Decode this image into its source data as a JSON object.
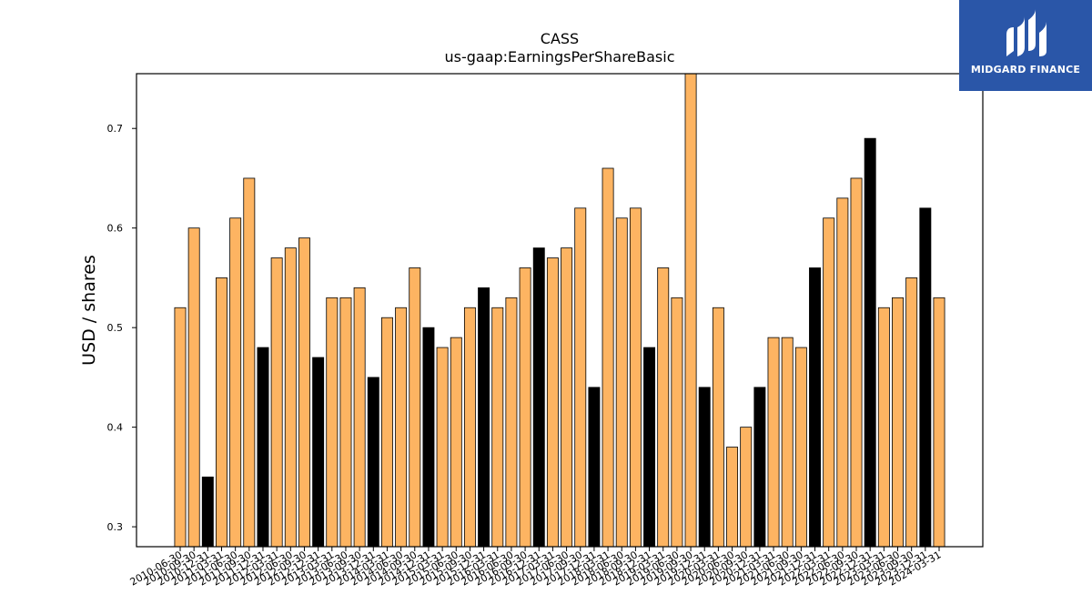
{
  "brand": {
    "name": "MIDGARD FINANCE",
    "bg_color": "#2a56a8"
  },
  "chart_data": {
    "type": "bar",
    "title": "CASS",
    "subtitle": "us-gaap:EarningsPerShareBasic",
    "ylabel": "USD / shares",
    "xlabel": "",
    "ylim": [
      0.28,
      0.755
    ],
    "yticks": [
      0.3,
      0.4,
      0.5,
      0.6,
      0.7
    ],
    "colors": {
      "primary": "#fdb462",
      "highlight": "#000000",
      "edge": "#000000"
    },
    "categories": [
      "2010-06-30",
      "2010-09-30",
      "2010-12-31",
      "2011-03-31",
      "2011-06-30",
      "2011-09-30",
      "2011-12-31",
      "2012-03-31",
      "2012-06-30",
      "2012-09-30",
      "2012-12-31",
      "2013-03-31",
      "2013-06-30",
      "2013-09-30",
      "2013-12-31",
      "2014-03-31",
      "2014-06-30",
      "2014-09-30",
      "2014-12-31",
      "2015-03-31",
      "2015-06-30",
      "2015-09-30",
      "2015-12-31",
      "2016-03-31",
      "2016-06-30",
      "2016-09-30",
      "2016-12-31",
      "2017-03-31",
      "2017-06-30",
      "2017-09-30",
      "2017-12-31",
      "2018-03-31",
      "2018-06-30",
      "2018-09-30",
      "2018-12-31",
      "2019-03-31",
      "2019-06-30",
      "2019-09-30",
      "2019-12-31",
      "2020-03-31",
      "2020-06-30",
      "2020-09-30",
      "2020-12-31",
      "2021-03-31",
      "2021-06-30",
      "2021-09-30",
      "2021-12-31",
      "2022-03-31",
      "2022-06-30",
      "2022-09-30",
      "2022-12-31",
      "2023-03-31",
      "2023-06-30",
      "2023-09-30",
      "2023-12-31",
      "2024-03-31"
    ],
    "values": [
      0.52,
      0.6,
      0.35,
      0.55,
      0.61,
      0.65,
      0.48,
      0.57,
      0.58,
      0.59,
      0.47,
      0.53,
      0.53,
      0.54,
      0.45,
      0.51,
      0.52,
      0.56,
      0.5,
      0.48,
      0.49,
      0.52,
      0.54,
      0.52,
      0.53,
      0.56,
      0.58,
      0.57,
      0.58,
      0.62,
      0.44,
      0.66,
      0.61,
      0.62,
      0.48,
      0.56,
      0.53,
      0.76,
      0.44,
      0.52,
      0.38,
      0.4,
      0.44,
      0.49,
      0.49,
      0.48,
      0.56,
      0.61,
      0.63,
      0.65,
      0.69,
      0.52,
      0.53,
      0.55,
      0.62,
      0.53
    ],
    "highlighted": [
      false,
      false,
      true,
      false,
      false,
      false,
      true,
      false,
      false,
      false,
      true,
      false,
      false,
      false,
      true,
      false,
      false,
      false,
      true,
      false,
      false,
      false,
      true,
      false,
      false,
      false,
      true,
      false,
      false,
      false,
      true,
      false,
      false,
      false,
      true,
      false,
      false,
      false,
      true,
      false,
      false,
      false,
      true,
      false,
      false,
      false,
      true,
      false,
      false,
      false,
      true,
      false,
      false,
      false,
      true,
      false
    ],
    "grid": false,
    "legend": "none"
  }
}
